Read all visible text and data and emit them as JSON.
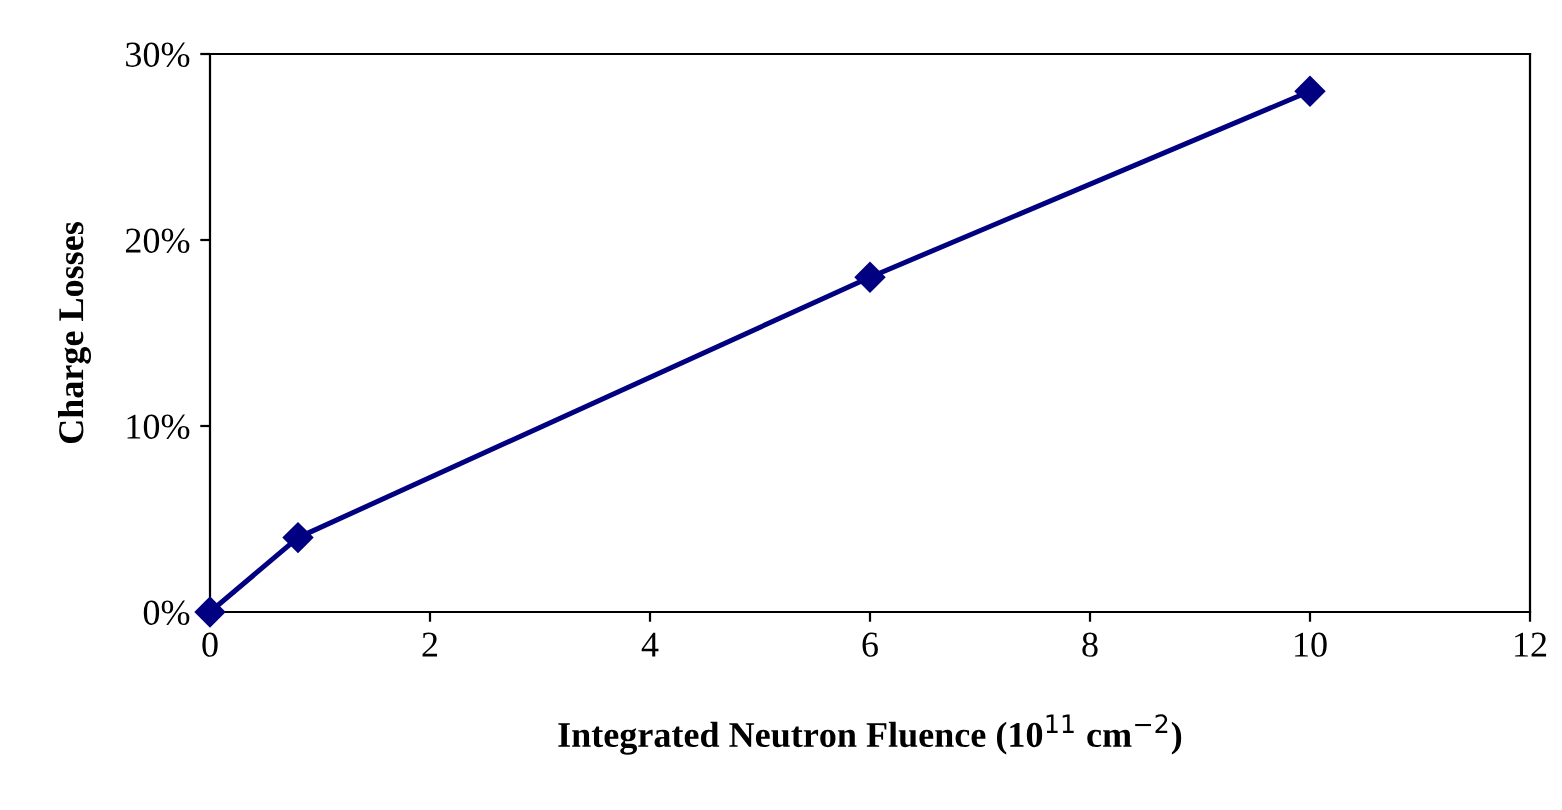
{
  "chart_data": {
    "type": "line",
    "xlabel": "Integrated Neutron Fluence (10$^{11}$ cm$^{−2}$)",
    "ylabel": "Charge Losses",
    "x": [
      0,
      0.8,
      6,
      10
    ],
    "series": [
      {
        "color": "#000080",
        "values": [
          0,
          4,
          18,
          28
        ]
      }
    ],
    "xlim": [
      0,
      12
    ],
    "xticks": [
      0,
      2,
      4,
      6,
      8,
      10,
      12
    ],
    "ylim": [
      0,
      30
    ],
    "yticks": [
      {
        "value": 0,
        "label": "0%"
      },
      {
        "value": 10,
        "label": "10%"
      },
      {
        "value": 20,
        "label": "20%"
      },
      {
        "value": 30,
        "label": "30%"
      }
    ],
    "grid": false,
    "legend": false,
    "marker": "diamond",
    "line_style": "solid"
  }
}
